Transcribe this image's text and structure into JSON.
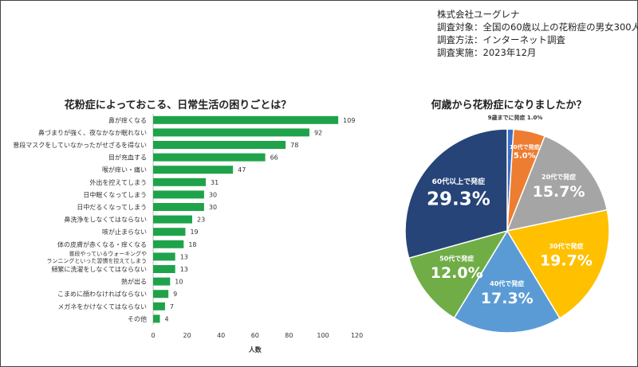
{
  "survey_info": {
    "company": "株式会社ユーグレナ",
    "target": "調査対象：全国の60歳以上の花粉症の男女300人",
    "method": "調査方法：インターネット調査",
    "date": "調査実施：2023年12月"
  },
  "chart_data": [
    {
      "type": "bar",
      "orientation": "horizontal",
      "title": "花粉症によっておこる、日常生活の困りごとは？",
      "xlabel": "人数",
      "xlim": [
        0,
        120
      ],
      "xticks": [
        "0",
        "20",
        "40",
        "60",
        "80",
        "100",
        "120"
      ],
      "color": "#1fa34a",
      "categories": [
        "鼻が痒くなる",
        "鼻づまりが強く、夜なかなか眠れない",
        "普段マスクをしていなかったがせざるを得ない",
        "目が充血する",
        "喉が痒い・痛い",
        "外出を控えてしまう",
        "日中眠くなってしまう",
        "日中だるくなってしまう",
        "鼻洗浄をしなくてはならない",
        "咳が止まらない",
        "体の皮膚が赤くなる・痒くなる",
        "普段やっているウォーキングや\nランニングといった習慣を控えてしまう",
        "頻繁に洗濯をしなくてはならない",
        "熱が出る",
        "こまめに顔わなければならない",
        "メガネをかけなくてはならない",
        "その他"
      ],
      "values": [
        109,
        92,
        78,
        66,
        47,
        31,
        30,
        30,
        23,
        19,
        18,
        13,
        13,
        10,
        9,
        7,
        4
      ]
    },
    {
      "type": "pie",
      "title": "何歳から花粉症になりましたか？",
      "slices": [
        {
          "label": "9歳までに発症",
          "value": 1.0,
          "display": "1.0%",
          "color": "#3b6ec5"
        },
        {
          "label": "10代で発症",
          "value": 5.0,
          "display": "5.0%",
          "color": "#ed7d31"
        },
        {
          "label": "20代で発症",
          "value": 15.7,
          "display": "15.7%",
          "color": "#a5a5a5"
        },
        {
          "label": "30代で発症",
          "value": 19.7,
          "display": "19.7%",
          "color": "#ffc000"
        },
        {
          "label": "40代で発症",
          "value": 17.3,
          "display": "17.3%",
          "color": "#5b9bd5"
        },
        {
          "label": "50代で発症",
          "value": 12.0,
          "display": "12.0%",
          "color": "#70ad47"
        },
        {
          "label": "60代以上で発症",
          "value": 29.3,
          "display": "29.3%",
          "color": "#264478"
        }
      ]
    }
  ]
}
